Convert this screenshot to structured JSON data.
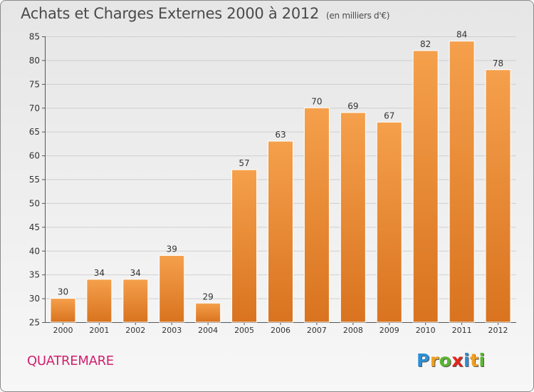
{
  "header": {
    "title": "Achats et Charges Externes 2000 à 2012",
    "subtitle": "(en milliers d'€)"
  },
  "footer": {
    "commune": "QUATREMARE",
    "logo_letters": [
      "P",
      "r",
      "o",
      "x",
      "i",
      "t",
      "i"
    ],
    "logo_colors": [
      "#2c8fd6",
      "#f0a020",
      "#5bb531",
      "#e2261c",
      "#2c8fd6",
      "#f0a020",
      "#5bb531"
    ]
  },
  "chart_data": {
    "type": "bar",
    "title": "Achats et Charges Externes 2000 à 2012",
    "subtitle": "(en milliers d'€)",
    "categories": [
      "2000",
      "2001",
      "2002",
      "2003",
      "2004",
      "2005",
      "2006",
      "2007",
      "2008",
      "2009",
      "2010",
      "2011",
      "2012"
    ],
    "values": [
      30,
      34,
      34,
      39,
      29,
      57,
      63,
      70,
      69,
      67,
      82,
      84,
      78
    ],
    "ylim": [
      25,
      85
    ],
    "yticks": [
      25,
      30,
      35,
      40,
      45,
      50,
      55,
      60,
      65,
      70,
      75,
      80,
      85
    ],
    "grid": true,
    "bar_color_top": "#f5a04c",
    "bar_color_bottom": "#d9731f"
  }
}
